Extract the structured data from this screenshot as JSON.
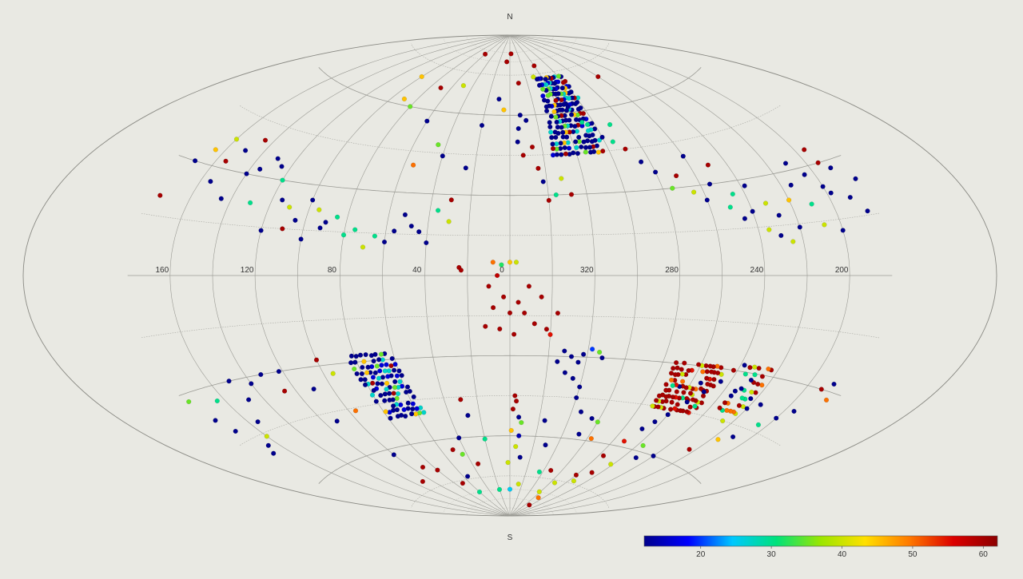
{
  "chart_data": {
    "type": "scatter",
    "projection": "aitoff",
    "title": "",
    "pole_labels": {
      "north": "N",
      "south": "S"
    },
    "longitude_ticks": [
      {
        "value": 160,
        "label": "160"
      },
      {
        "value": 120,
        "label": "120"
      },
      {
        "value": 80,
        "label": "80"
      },
      {
        "value": 40,
        "label": "40"
      },
      {
        "value": 0,
        "label": "0"
      },
      {
        "value": 320,
        "label": "320"
      },
      {
        "value": 280,
        "label": "280"
      },
      {
        "value": 240,
        "label": "240"
      },
      {
        "value": 200,
        "label": "200"
      }
    ],
    "grid": {
      "meridian_step_deg": 20,
      "parallel_step_deg": 15,
      "shown": true
    },
    "longitude_direction": "increasing to the left, centred on 0",
    "colorbar": {
      "min": 12,
      "max": 62,
      "ticks": [
        {
          "value": 20,
          "label": "20"
        },
        {
          "value": 30,
          "label": "30"
        },
        {
          "value": 40,
          "label": "40"
        },
        {
          "value": 50,
          "label": "50"
        },
        {
          "value": 60,
          "label": "60"
        }
      ],
      "colormap": [
        "#00008c",
        "#0000ff",
        "#00c8ff",
        "#00e27a",
        "#9be600",
        "#ffe000",
        "#ff7a00",
        "#dc0000",
        "#8c0000"
      ],
      "placement": "bottom-right"
    },
    "dense_regions": [
      {
        "l_min": 304,
        "l_max": 336,
        "b_min": 45,
        "b_max": 73,
        "lon_step": 2.5,
        "lat_step": 2.0,
        "mix": "mostly_blue"
      },
      {
        "l_min": 56,
        "l_max": 80,
        "b_min": -50,
        "b_max": -28,
        "lon_step": 2.5,
        "lat_step": 2.0,
        "mix": "mostly_blue"
      },
      {
        "l_min": 247,
        "l_max": 274,
        "b_min": -45,
        "b_max": -28,
        "lon_step": 2.0,
        "lat_step": 1.9,
        "mix": "mostly_red",
        "hole": {
          "l": 260,
          "b": -34,
          "r": 3.5
        }
      },
      {
        "l_min": 223,
        "l_max": 235,
        "b_min": -42,
        "b_max": -28,
        "lon_step": 2.3,
        "lat_step": 2.3,
        "mix": "mixed"
      }
    ],
    "points": [
      [
        10,
        -4,
        60
      ],
      [
        8,
        -12,
        60
      ],
      [
        6,
        0,
        58
      ],
      [
        3,
        -8,
        60
      ],
      [
        0,
        -14,
        60
      ],
      [
        -4,
        -10,
        60
      ],
      [
        -7,
        -14,
        60
      ],
      [
        -9,
        -4,
        60
      ],
      [
        -12,
        -18,
        60
      ],
      [
        -15,
        -8,
        60
      ],
      [
        -18,
        -20,
        60
      ],
      [
        5,
        -20,
        60
      ],
      [
        -2,
        -22,
        60
      ],
      [
        12,
        -19,
        60
      ],
      [
        -20,
        -22,
        55
      ],
      [
        -23,
        -14,
        60
      ],
      [
        4,
        4,
        32
      ],
      [
        0,
        5,
        45
      ],
      [
        -3,
        5,
        40
      ],
      [
        8,
        5,
        50
      ],
      [
        24,
        3,
        60
      ],
      [
        23,
        2,
        60
      ],
      [
        -2,
        -50,
        60
      ],
      [
        -3,
        -45,
        60
      ],
      [
        -4,
        -47,
        60
      ],
      [
        -6,
        -53,
        12
      ],
      [
        -8,
        -55,
        35
      ],
      [
        -1,
        -58,
        45
      ],
      [
        -10,
        -68,
        12
      ],
      [
        -5,
        -64,
        40
      ],
      [
        2,
        -70,
        40
      ],
      [
        0,
        -80,
        25
      ],
      [
        -7,
        -60,
        14
      ],
      [
        20,
        -61,
        30
      ],
      [
        28,
        -52,
        12
      ],
      [
        40,
        -60,
        12
      ],
      [
        44,
        -66,
        35
      ],
      [
        34,
        -70,
        60
      ],
      [
        20,
        -80,
        30
      ],
      [
        -24,
        -54,
        12
      ],
      [
        -30,
        -63,
        12
      ],
      [
        -36,
        -73,
        30
      ],
      [
        -14,
        -78,
        40
      ],
      [
        -40,
        -45,
        12
      ],
      [
        -46,
        -50,
        12
      ],
      [
        -55,
        -52,
        12
      ],
      [
        -52,
        -58,
        12
      ],
      [
        -60,
        -53,
        35
      ],
      [
        -63,
        -59,
        50
      ],
      [
        -48,
        -72,
        60
      ],
      [
        -58,
        -80,
        40
      ],
      [
        -66,
        -76,
        40
      ],
      [
        -70,
        -82,
        50
      ],
      [
        -75,
        -85,
        60
      ],
      [
        -80,
        -72,
        60
      ],
      [
        -84,
        -64,
        60
      ],
      [
        -88,
        -58,
        55
      ],
      [
        -92,
        -53,
        12
      ],
      [
        -96,
        -50,
        12
      ],
      [
        -100,
        -47,
        12
      ],
      [
        -105,
        -42,
        12
      ],
      [
        -110,
        -38,
        12
      ],
      [
        -115,
        -34,
        12
      ],
      [
        -118,
        -30,
        60
      ],
      [
        -122,
        -28,
        12
      ],
      [
        -126,
        -36,
        12
      ],
      [
        -130,
        -32,
        12
      ],
      [
        -134,
        -45,
        40
      ],
      [
        -140,
        -40,
        12
      ],
      [
        -145,
        -38,
        12
      ],
      [
        -150,
        -48,
        12
      ],
      [
        -155,
        -43,
        30
      ],
      [
        -160,
        -40,
        12
      ],
      [
        -165,
        -37,
        12
      ],
      [
        -168,
        -30,
        60
      ],
      [
        -172,
        -28,
        12
      ],
      [
        -175,
        -32,
        50
      ],
      [
        -144,
        -50,
        45
      ],
      [
        -136,
        -55,
        60
      ],
      [
        -120,
        -60,
        12
      ],
      [
        -110,
        -62,
        12
      ],
      [
        -104,
        -58,
        35
      ],
      [
        -98,
        -66,
        40
      ],
      [
        -92,
        -70,
        60
      ],
      [
        -86,
        -74,
        40
      ],
      [
        -28,
        -28,
        12
      ],
      [
        -32,
        -30,
        12
      ],
      [
        -36,
        -32,
        12
      ],
      [
        -38,
        -29,
        12
      ],
      [
        -42,
        -27,
        20
      ],
      [
        -46,
        -28,
        35
      ],
      [
        -48,
        -30,
        12
      ],
      [
        -25,
        -32,
        12
      ],
      [
        -30,
        -36,
        12
      ],
      [
        -35,
        -38,
        12
      ],
      [
        -40,
        -41,
        12
      ],
      [
        95,
        -33,
        40
      ],
      [
        100,
        -28,
        60
      ],
      [
        110,
        -37,
        12
      ],
      [
        112,
        -48,
        12
      ],
      [
        96,
        -46,
        50
      ],
      [
        132,
        -30,
        12
      ],
      [
        140,
        -32,
        12
      ],
      [
        148,
        -36,
        12
      ],
      [
        150,
        -30,
        12
      ],
      [
        155,
        -42,
        12
      ],
      [
        160,
        -46,
        40
      ],
      [
        166,
        -48,
        12
      ],
      [
        170,
        -50,
        12
      ],
      [
        172,
        -42,
        12
      ],
      [
        175,
        -38,
        12
      ],
      [
        178,
        -32,
        35
      ],
      [
        164,
        -34,
        30
      ],
      [
        126,
        -36,
        60
      ],
      [
        122,
        -30,
        12
      ],
      [
        80,
        -70,
        60
      ],
      [
        90,
        -68,
        60
      ],
      [
        100,
        -62,
        12
      ],
      [
        110,
        -72,
        60
      ],
      [
        70,
        -76,
        60
      ],
      [
        60,
        -80,
        30
      ],
      [
        50,
        -64,
        60
      ],
      [
        55,
        -74,
        12
      ],
      [
        30,
        -46,
        60
      ],
      [
        6,
        80,
        60
      ],
      [
        -10,
        72,
        60
      ],
      [
        -3,
        83,
        60
      ],
      [
        -6,
        55,
        12
      ],
      [
        -8,
        60,
        12
      ],
      [
        -12,
        58,
        12
      ],
      [
        -14,
        48,
        60
      ],
      [
        -16,
        40,
        60
      ],
      [
        -18,
        35,
        12
      ],
      [
        -24,
        30,
        30
      ],
      [
        -28,
        36,
        40
      ],
      [
        -20,
        28,
        60
      ],
      [
        -32,
        30,
        60
      ],
      [
        60,
        82,
        60
      ],
      [
        50,
        70,
        40
      ],
      [
        70,
        68,
        60
      ],
      [
        80,
        60,
        35
      ],
      [
        90,
        62,
        45
      ],
      [
        100,
        70,
        45
      ],
      [
        60,
        56,
        12
      ],
      [
        40,
        44,
        12
      ],
      [
        45,
        48,
        35
      ],
      [
        55,
        40,
        50
      ],
      [
        30,
        28,
        60
      ],
      [
        25,
        40,
        12
      ],
      [
        20,
        56,
        12
      ],
      [
        10,
        66,
        12
      ],
      [
        -5,
        50,
        12
      ],
      [
        -8,
        45,
        60
      ],
      [
        5,
        62,
        45
      ],
      [
        30,
        20,
        40
      ],
      [
        36,
        24,
        30
      ],
      [
        40,
        12,
        12
      ],
      [
        44,
        16,
        12
      ],
      [
        48,
        18,
        12
      ],
      [
        52,
        22,
        12
      ],
      [
        56,
        16,
        12
      ],
      [
        60,
        12,
        12
      ],
      [
        65,
        14,
        30
      ],
      [
        70,
        10,
        40
      ],
      [
        75,
        16,
        30
      ],
      [
        80,
        14,
        30
      ],
      [
        85,
        20,
        30
      ],
      [
        90,
        18,
        12
      ],
      [
        95,
        22,
        40
      ],
      [
        100,
        25,
        12
      ],
      [
        105,
        18,
        12
      ],
      [
        110,
        15,
        60
      ],
      [
        115,
        24,
        12
      ],
      [
        120,
        30,
        30
      ],
      [
        125,
        34,
        12
      ],
      [
        130,
        36,
        12
      ],
      [
        135,
        32,
        12
      ],
      [
        140,
        30,
        12
      ],
      [
        145,
        40,
        60
      ],
      [
        150,
        36,
        12
      ],
      [
        155,
        32,
        60
      ],
      [
        160,
        38,
        40
      ],
      [
        165,
        34,
        45
      ],
      [
        170,
        30,
        12
      ],
      [
        175,
        20,
        60
      ],
      [
        155,
        26,
        12
      ],
      [
        145,
        22,
        12
      ],
      [
        130,
        22,
        30
      ],
      [
        120,
        14,
        12
      ],
      [
        110,
        22,
        40
      ],
      [
        100,
        12,
        12
      ],
      [
        92,
        16,
        12
      ],
      [
        -48,
        62,
        12
      ],
      [
        -55,
        55,
        30
      ],
      [
        -60,
        50,
        12
      ],
      [
        -65,
        48,
        30
      ],
      [
        -70,
        45,
        60
      ],
      [
        -75,
        40,
        12
      ],
      [
        -80,
        36,
        12
      ],
      [
        -85,
        30,
        35
      ],
      [
        -90,
        34,
        60
      ],
      [
        -95,
        28,
        40
      ],
      [
        -100,
        25,
        12
      ],
      [
        -105,
        30,
        12
      ],
      [
        -110,
        22,
        30
      ],
      [
        -115,
        18,
        12
      ],
      [
        -120,
        20,
        12
      ],
      [
        -125,
        14,
        40
      ],
      [
        -130,
        12,
        12
      ],
      [
        -135,
        10,
        40
      ],
      [
        -140,
        14,
        12
      ],
      [
        -145,
        26,
        12
      ],
      [
        -150,
        32,
        12
      ],
      [
        -155,
        28,
        12
      ],
      [
        -160,
        24,
        12
      ],
      [
        -165,
        34,
        60
      ],
      [
        -170,
        20,
        12
      ],
      [
        -175,
        16,
        12
      ],
      [
        -178,
        24,
        12
      ],
      [
        -150,
        20,
        30
      ],
      [
        -140,
        22,
        45
      ],
      [
        -132,
        18,
        12
      ],
      [
        -152,
        14,
        40
      ],
      [
        -160,
        12,
        12
      ],
      [
        -170,
        28,
        12
      ],
      [
        -166,
        30,
        60
      ],
      [
        -162,
        22,
        12
      ],
      [
        -128,
        22,
        40
      ],
      [
        -122,
        28,
        12
      ],
      [
        -114,
        26,
        30
      ],
      [
        -100,
        70,
        60
      ],
      [
        -40,
        78,
        60
      ],
      [
        -30,
        74,
        40
      ],
      [
        -52,
        56,
        30
      ],
      [
        -100,
        40,
        12
      ],
      [
        -110,
        36,
        60
      ],
      [
        -70,
        54,
        30
      ]
    ]
  }
}
